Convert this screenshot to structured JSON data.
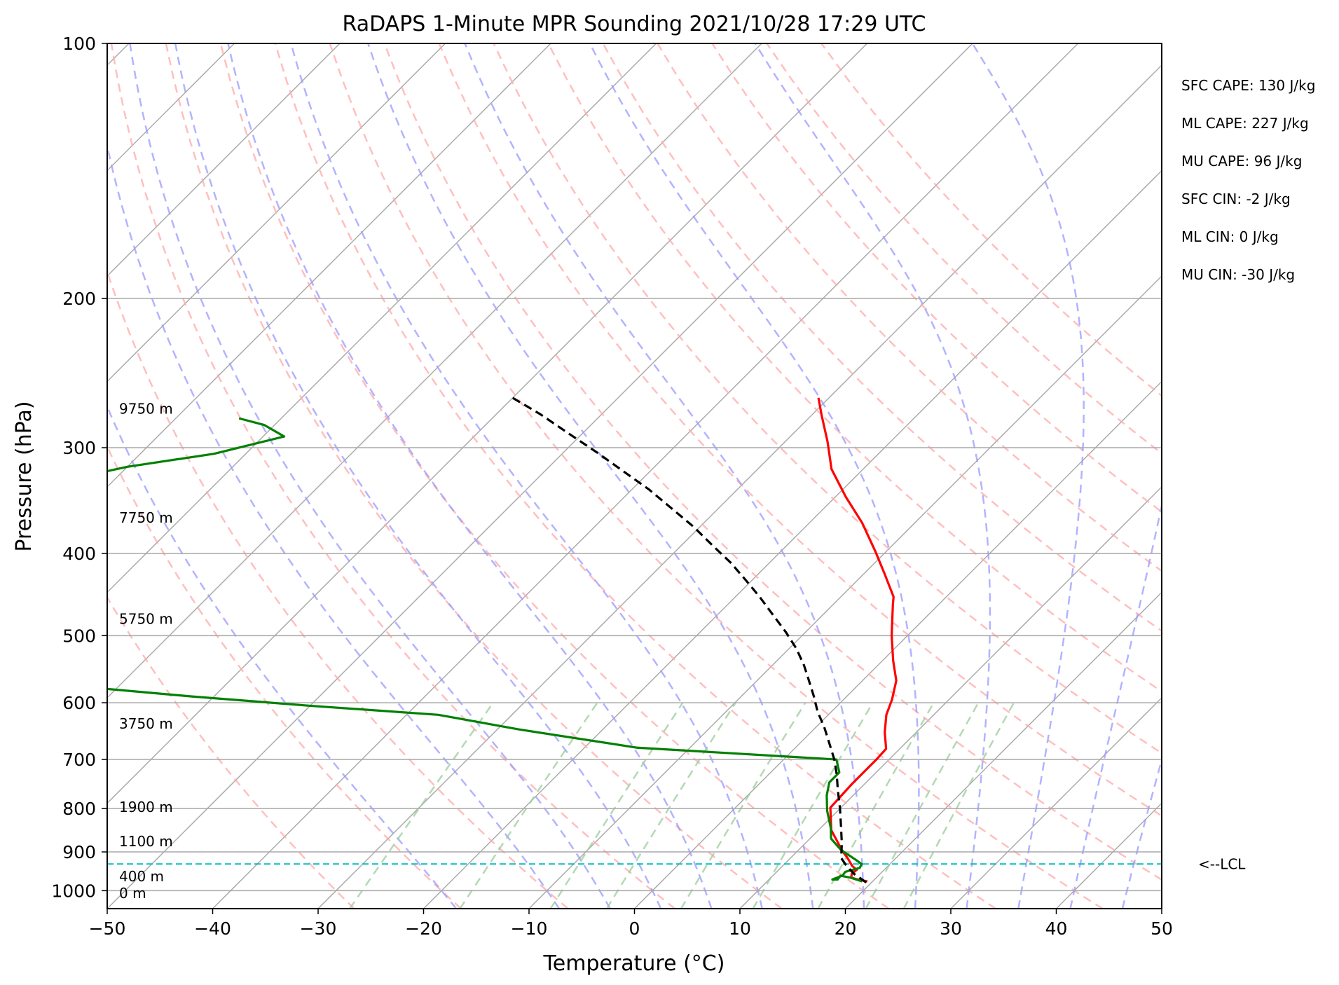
{
  "chart_data": {
    "type": "line",
    "title": "RaDAPS 1-Minute MPR Sounding 2021/10/28 17:29 UTC",
    "xlabel": "Temperature (°C)",
    "ylabel": "Pressure (hPa)",
    "xlim": [
      -50,
      50
    ],
    "ylim": [
      1050,
      100
    ],
    "y_scale": "log",
    "x_ticks": [
      -50,
      -40,
      -30,
      -20,
      -10,
      0,
      10,
      20,
      30,
      40,
      50
    ],
    "x_tick_labels": [
      "−50",
      "−40",
      "−30",
      "−20",
      "−10",
      "0",
      "10",
      "20",
      "30",
      "40",
      "50"
    ],
    "y_ticks": [
      100,
      200,
      300,
      400,
      500,
      600,
      700,
      800,
      900,
      1000
    ],
    "y_tick_labels": [
      "100",
      "200",
      "300",
      "400",
      "500",
      "600",
      "700",
      "800",
      "900",
      "1000"
    ],
    "grid": true,
    "colors": {
      "temperature": "#ff0000",
      "dewpoint": "#008000",
      "parcel": "#000000",
      "lcl": "#00bfbf",
      "isotherm": "#a9a9a9",
      "dry_adiabat": "#ffaaaa",
      "moist_adiabat": "#9999ff",
      "mixing_ratio": "#99cc99"
    },
    "series": [
      {
        "key": "temperature",
        "style": "solid",
        "points": [
          [
            19.5,
            975
          ],
          [
            18.4,
            970
          ],
          [
            17.6,
            965
          ],
          [
            17.3,
            955
          ],
          [
            17.4,
            945
          ],
          [
            16.6,
            935
          ],
          [
            15.4,
            915
          ],
          [
            14.2,
            897
          ],
          [
            13.0,
            877
          ],
          [
            11.2,
            848
          ],
          [
            9.0,
            798
          ],
          [
            8.8,
            748
          ],
          [
            8.8,
            700
          ],
          [
            8.7,
            680
          ],
          [
            7.0,
            650
          ],
          [
            5.5,
            620
          ],
          [
            4.6,
            595
          ],
          [
            3.2,
            565
          ],
          [
            1.0,
            535
          ],
          [
            -1.5,
            500
          ],
          [
            -4.3,
            460
          ],
          [
            -5.0,
            450
          ],
          [
            -8.0,
            423
          ],
          [
            -11.0,
            398
          ],
          [
            -15.0,
            368
          ],
          [
            -19.0,
            343
          ],
          [
            -23.0,
            318
          ],
          [
            -26.0,
            295
          ],
          [
            -29.0,
            275
          ],
          [
            -31.0,
            262
          ]
        ]
      },
      {
        "key": "dewpoint",
        "style": "solid",
        "points": [
          [
            19.0,
            975
          ],
          [
            17.5,
            965
          ],
          [
            16.4,
            960
          ],
          [
            16.5,
            970
          ],
          [
            16.0,
            970
          ],
          [
            16.6,
            960
          ],
          [
            16.5,
            950
          ],
          [
            17.5,
            940
          ],
          [
            17.3,
            930
          ],
          [
            16.4,
            920
          ],
          [
            14.0,
            895
          ],
          [
            12.0,
            868
          ],
          [
            11.0,
            844
          ],
          [
            9.0,
            805
          ],
          [
            7.5,
            772
          ],
          [
            6.5,
            745
          ],
          [
            6.5,
            725
          ],
          [
            5.0,
            700
          ],
          [
            -15.0,
            678
          ],
          [
            -28.0,
            645
          ],
          [
            -37.0,
            620
          ],
          [
            -50.0,
            605
          ],
          [
            -62.0,
            590
          ],
          [
            -73.0,
            575
          ],
          [
            -79.0,
            568
          ],
          [
            -85.0,
            559
          ],
          [
            -88.0,
            555
          ],
          [
            -94.0,
            530
          ],
          [
            -96.0,
            510
          ],
          [
            -97.0,
            495
          ],
          [
            -100.0,
            480
          ],
          [
            -104.0,
            463
          ],
          [
            -106.0,
            452
          ],
          [
            -105.0,
            405
          ],
          [
            -103.0,
            397
          ],
          [
            -103.5,
            388
          ],
          [
            -103.0,
            383
          ],
          [
            -100.0,
            342
          ],
          [
            -90.0,
            316
          ],
          [
            -83.0,
            305
          ],
          [
            -78.0,
            291
          ],
          [
            -81.0,
            282
          ],
          [
            -84.0,
            277
          ]
        ]
      },
      {
        "key": "parcel",
        "style": "dashed",
        "points": [
          [
            19.5,
            978
          ],
          [
            17.5,
            955
          ],
          [
            16.0,
            934
          ],
          [
            14.8,
            915
          ],
          [
            13.5,
            880
          ],
          [
            11.8,
            840
          ],
          [
            10.0,
            800
          ],
          [
            8.0,
            760
          ],
          [
            6.5,
            730
          ],
          [
            4.8,
            700
          ],
          [
            2.8,
            670
          ],
          [
            0.7,
            640
          ],
          [
            -1.3,
            615
          ],
          [
            -3.1,
            590
          ],
          [
            -5.0,
            566
          ],
          [
            -7.0,
            542
          ],
          [
            -9.3,
            518
          ],
          [
            -11.9,
            495
          ],
          [
            -14.8,
            472
          ],
          [
            -17.7,
            450
          ],
          [
            -20.6,
            430
          ],
          [
            -23.7,
            410
          ],
          [
            -27.1,
            391
          ],
          [
            -30.6,
            372
          ],
          [
            -34.4,
            354
          ],
          [
            -38.4,
            336
          ],
          [
            -42.5,
            320
          ],
          [
            -46.8,
            304
          ],
          [
            -51.2,
            289
          ],
          [
            -55.8,
            274
          ],
          [
            -60.0,
            262
          ]
        ]
      }
    ],
    "lcl": {
      "pressure": 930,
      "label": "<--LCL"
    },
    "stats": [
      "SFC CAPE: 130 J/kg",
      "ML CAPE: 227 J/kg",
      "MU CAPE: 96 J/kg",
      "SFC CIN: -2 J/kg",
      "ML CIN: 0 J/kg",
      "MU CIN: -30 J/kg"
    ],
    "height_labels": [
      {
        "text": "9750 m",
        "pressure": 270
      },
      {
        "text": "7750 m",
        "pressure": 363
      },
      {
        "text": "5750 m",
        "pressure": 478
      },
      {
        "text": "3750 m",
        "pressure": 635
      },
      {
        "text": "1900 m",
        "pressure": 797
      },
      {
        "text": "1100 m",
        "pressure": 875
      },
      {
        "text": "400 m",
        "pressure": 962
      },
      {
        "text": "0 m",
        "pressure": 1007
      }
    ],
    "isotherms": [
      -160,
      -150,
      -140,
      -130,
      -120,
      -110,
      -100,
      -90,
      -80,
      -70,
      -60,
      -50,
      -40,
      -30,
      -20,
      -10,
      0,
      10,
      20,
      30,
      40,
      50
    ],
    "dry_adiabats_theta_c": [
      -30,
      -20,
      -10,
      0,
      10,
      20,
      30,
      40,
      50,
      60,
      70,
      80,
      90,
      100,
      110,
      120,
      130
    ],
    "moist_adiabats_theta_c": [
      -20,
      -10,
      -5,
      0,
      5,
      10,
      15,
      20,
      25,
      30,
      35,
      40,
      45,
      50
    ],
    "mixing_ratios_gkg": [
      0.4,
      1,
      2,
      3,
      5,
      8,
      12,
      16,
      20
    ]
  }
}
